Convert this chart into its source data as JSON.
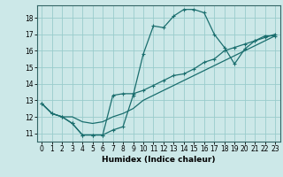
{
  "xlabel": "Humidex (Indice chaleur)",
  "bg_color": "#cce8e8",
  "grid_color": "#99cccc",
  "line_color": "#1a6e6e",
  "xlim": [
    -0.5,
    23.5
  ],
  "ylim": [
    10.5,
    18.75
  ],
  "yticks": [
    11,
    12,
    13,
    14,
    15,
    16,
    17,
    18
  ],
  "xticks": [
    0,
    1,
    2,
    3,
    4,
    5,
    6,
    7,
    8,
    9,
    10,
    11,
    12,
    13,
    14,
    15,
    16,
    17,
    18,
    19,
    20,
    21,
    22,
    23
  ],
  "curve1_x": [
    0,
    1,
    2,
    3,
    4,
    5,
    6,
    7,
    8,
    9,
    10,
    11,
    12,
    13,
    14,
    15,
    16,
    17,
    18,
    19,
    20,
    21,
    22,
    23
  ],
  "curve1_y": [
    12.8,
    12.2,
    12.0,
    11.6,
    10.9,
    10.9,
    10.9,
    11.2,
    11.4,
    13.3,
    15.8,
    17.5,
    17.4,
    18.1,
    18.5,
    18.5,
    18.3,
    17.0,
    16.2,
    15.2,
    16.1,
    16.6,
    16.9,
    16.9
  ],
  "curve2_x": [
    0,
    1,
    2,
    3,
    4,
    5,
    6,
    7,
    8,
    9,
    10,
    11,
    12,
    13,
    14,
    15,
    16,
    17,
    18,
    19,
    20,
    21,
    22,
    23
  ],
  "curve2_y": [
    12.8,
    12.2,
    12.0,
    11.6,
    10.9,
    10.9,
    10.9,
    13.3,
    13.4,
    13.4,
    13.6,
    13.9,
    14.2,
    14.5,
    14.6,
    14.9,
    15.3,
    15.5,
    16.0,
    16.2,
    16.4,
    16.6,
    16.8,
    17.0
  ],
  "curve3_x": [
    0,
    1,
    2,
    3,
    4,
    5,
    6,
    7,
    8,
    9,
    10,
    11,
    12,
    13,
    14,
    15,
    16,
    17,
    18,
    19,
    20,
    21,
    22,
    23
  ],
  "curve3_y": [
    12.8,
    12.2,
    12.0,
    12.0,
    11.7,
    11.6,
    11.7,
    12.0,
    12.2,
    12.5,
    13.0,
    13.3,
    13.6,
    13.9,
    14.2,
    14.5,
    14.8,
    15.1,
    15.4,
    15.7,
    16.0,
    16.3,
    16.6,
    16.9
  ]
}
